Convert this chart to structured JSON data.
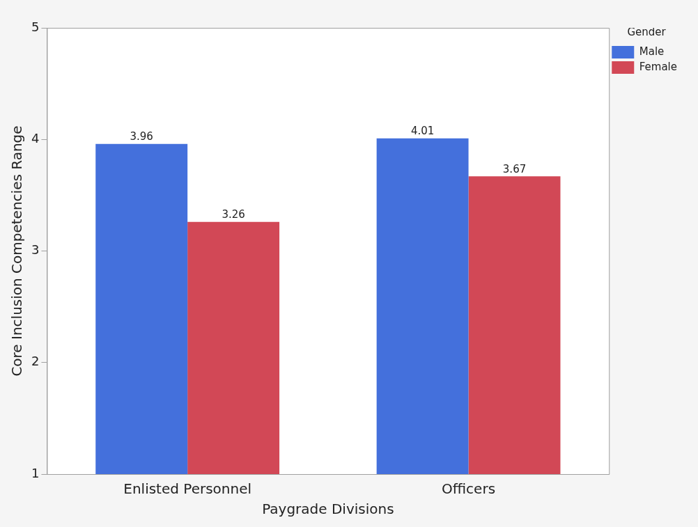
{
  "chart_data": {
    "type": "bar",
    "xlabel": "Paygrade Divisions",
    "ylabel": "Core Inclusion Competencies Range",
    "legend_title": "Gender",
    "categories": [
      "Enlisted Personnel",
      "Officers"
    ],
    "series": [
      {
        "name": "Male",
        "color": "#4470dc",
        "values": [
          3.96,
          4.01
        ]
      },
      {
        "name": "Female",
        "color": "#d24856",
        "values": [
          3.26,
          3.67
        ]
      }
    ],
    "ylim": [
      1,
      5
    ],
    "yticks": [
      1,
      2,
      3,
      4,
      5
    ],
    "grid": false,
    "legend": "top right",
    "data_labels": true
  }
}
